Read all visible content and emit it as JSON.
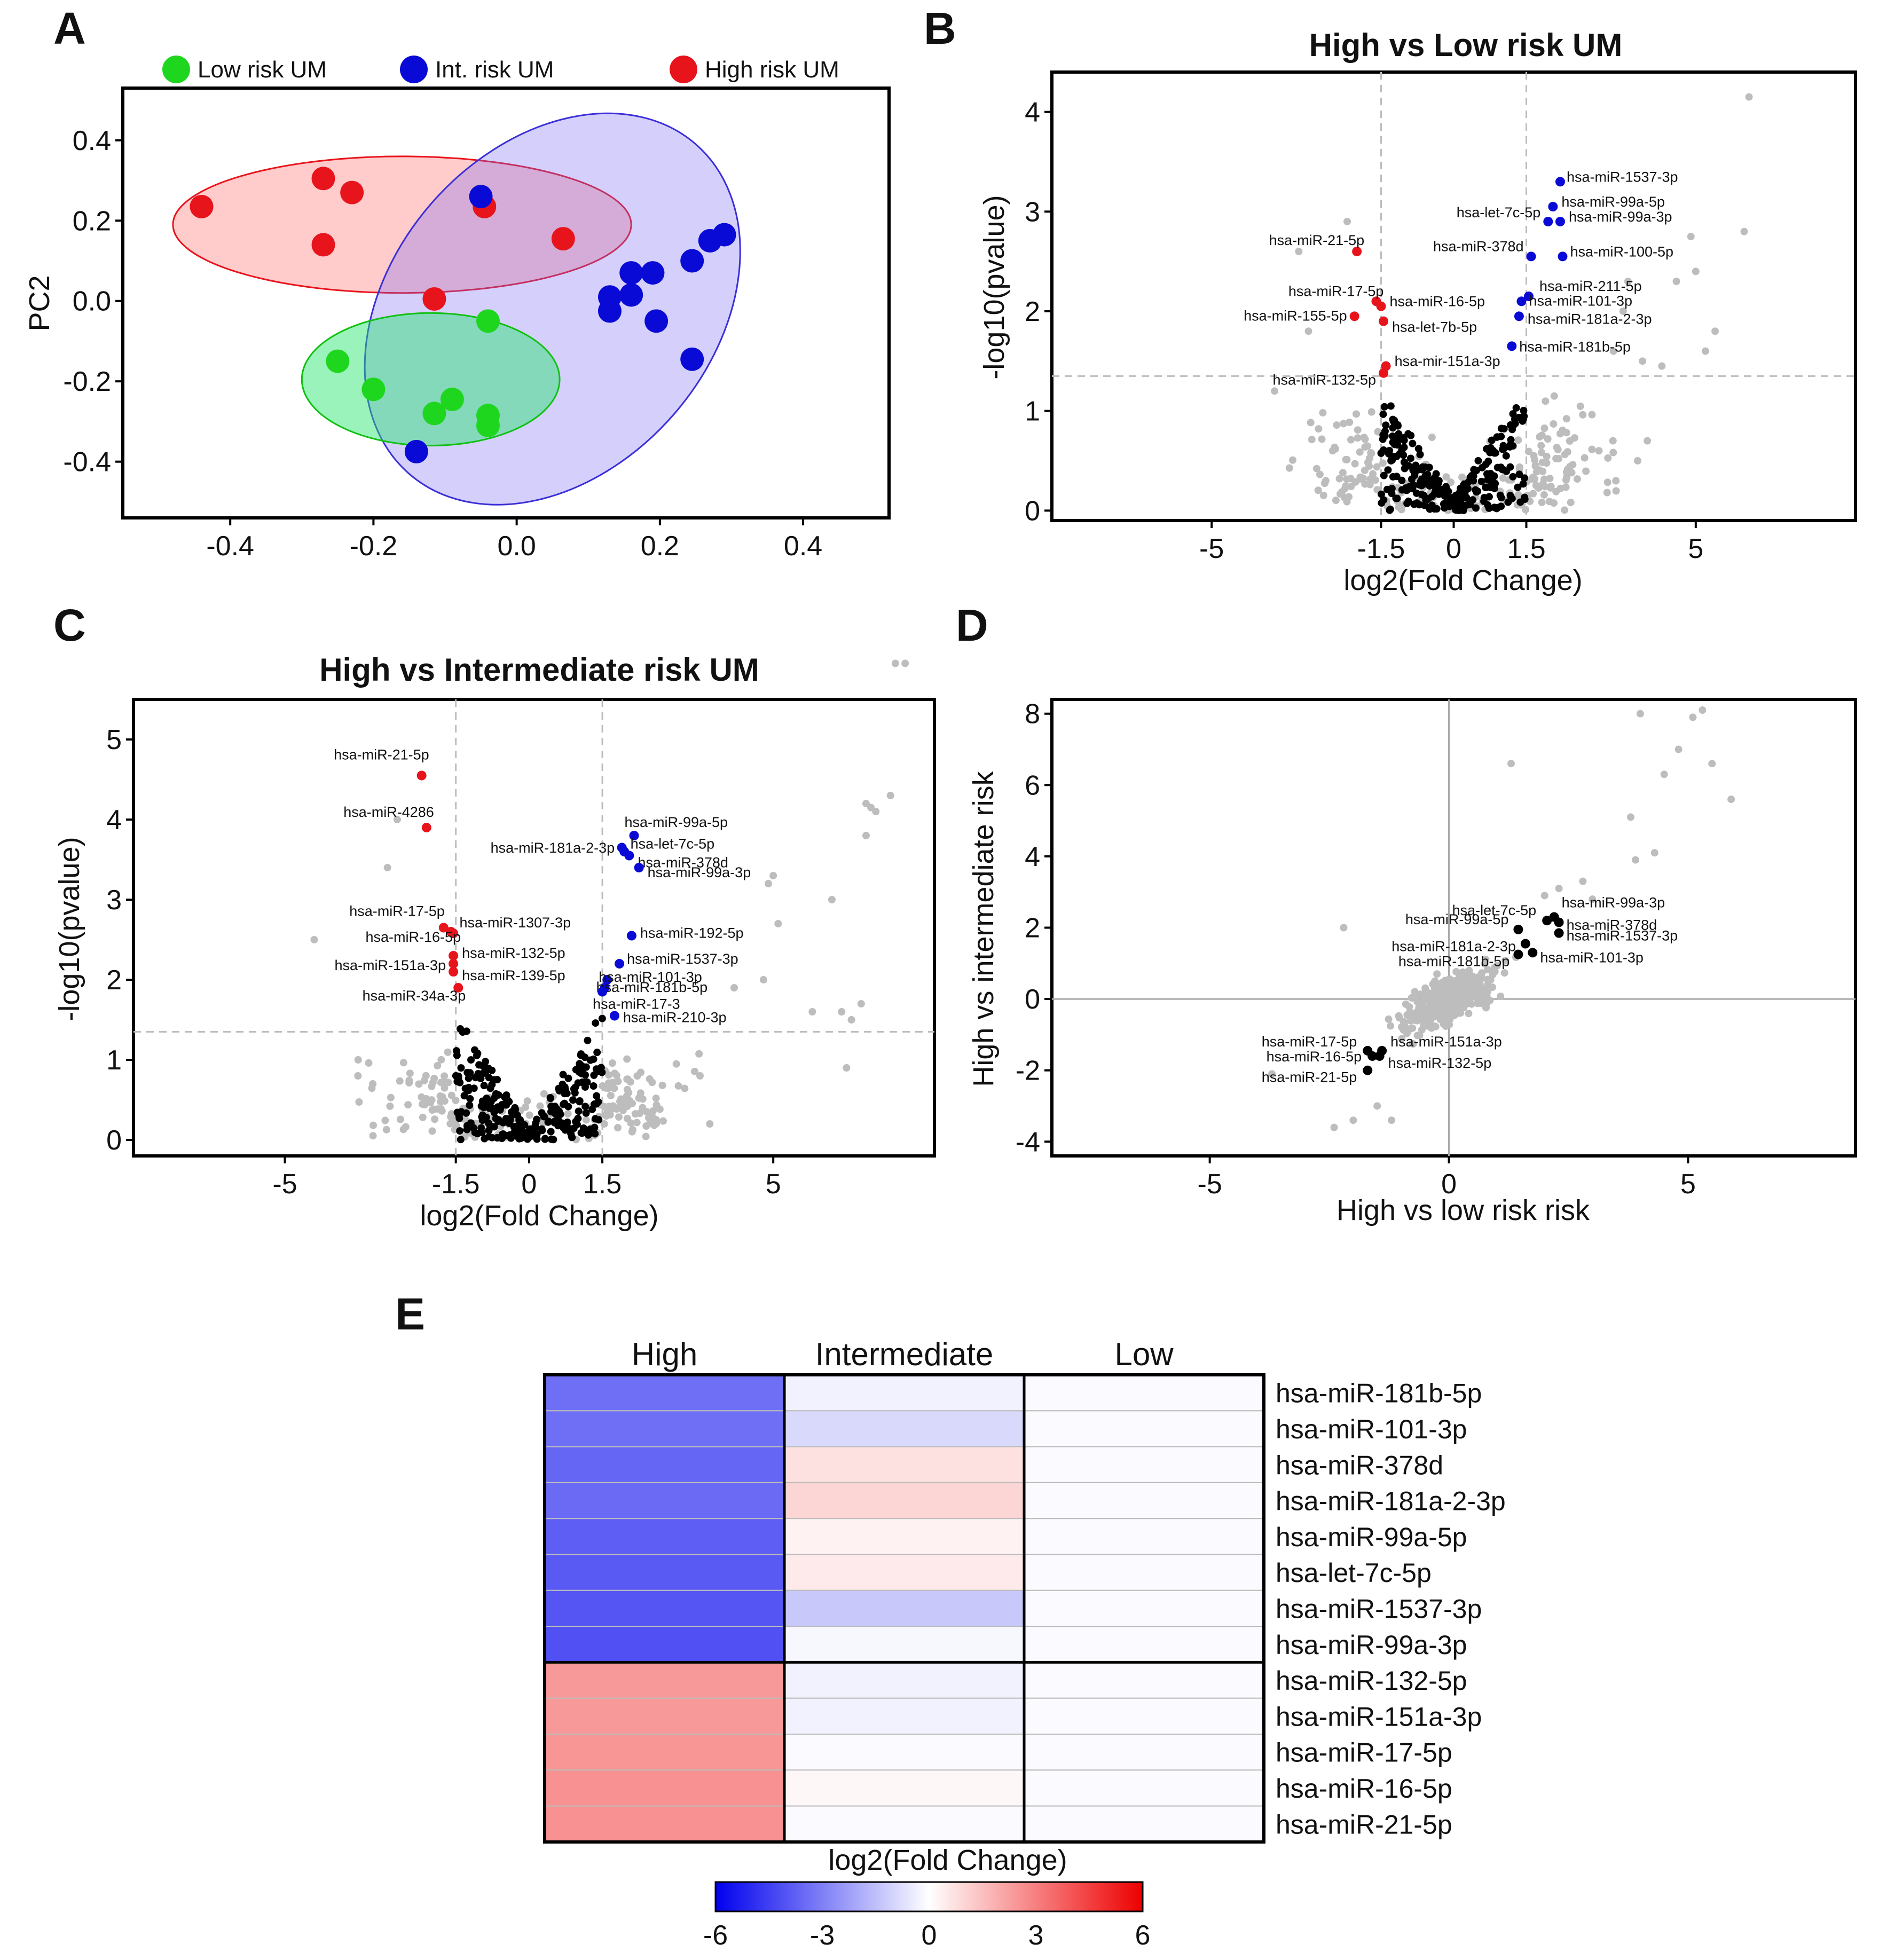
{
  "colors": {
    "red": "#e8141c",
    "blue": "#0a0ad6",
    "green": "#1fd61f",
    "gray": "#bdbdbd",
    "black": "#000000"
  },
  "chart_data": [
    {
      "panel": "A",
      "type": "scatter",
      "title": "",
      "xlabel": "",
      "ylabel": "PC2",
      "xlim": [
        -0.55,
        0.52
      ],
      "ylim": [
        -0.54,
        0.53
      ],
      "xticks": [
        "-0.4",
        "-0.2",
        "0.0",
        "0.2",
        "0.4"
      ],
      "yticks": [
        "0.4",
        "0.2",
        "0.0",
        "-0.2",
        "-0.4"
      ],
      "legend": [
        "Low risk UM",
        "Int. risk UM",
        "High risk UM"
      ],
      "series": [
        {
          "name": "High risk UM",
          "color": "#e8141c",
          "points": [
            [
              -0.44,
              0.235
            ],
            [
              -0.27,
              0.305
            ],
            [
              -0.23,
              0.27
            ],
            [
              -0.27,
              0.14
            ],
            [
              -0.045,
              0.235
            ],
            [
              0.065,
              0.155
            ],
            [
              -0.115,
              0.005
            ]
          ]
        },
        {
          "name": "Int. risk UM",
          "color": "#0a0ad6",
          "points": [
            [
              -0.05,
              0.26
            ],
            [
              0.16,
              0.07
            ],
            [
              0.19,
              0.07
            ],
            [
              0.13,
              0.01
            ],
            [
              0.16,
              0.015
            ],
            [
              0.13,
              -0.025
            ],
            [
              0.195,
              -0.05
            ],
            [
              0.245,
              0.1
            ],
            [
              0.27,
              0.15
            ],
            [
              0.29,
              0.165
            ],
            [
              0.245,
              -0.145
            ],
            [
              -0.14,
              -0.375
            ]
          ]
        },
        {
          "name": "Low risk UM",
          "color": "#1fd61f",
          "points": [
            [
              -0.04,
              -0.05
            ],
            [
              -0.25,
              -0.15
            ],
            [
              -0.2,
              -0.22
            ],
            [
              -0.09,
              -0.245
            ],
            [
              -0.115,
              -0.28
            ],
            [
              -0.04,
              -0.285
            ],
            [
              -0.04,
              -0.31
            ]
          ]
        }
      ],
      "ellipses": [
        {
          "group": "High risk UM",
          "cx": -0.16,
          "cy": 0.19,
          "rx": 0.32,
          "ry": 0.17,
          "angle_deg": 0
        },
        {
          "group": "Int. risk UM",
          "cx": 0.05,
          "cy": -0.02,
          "rx": 0.305,
          "ry": 0.4,
          "angle_deg": -49
        },
        {
          "group": "Low risk UM",
          "cx": -0.12,
          "cy": -0.195,
          "rx": 0.18,
          "ry": 0.165,
          "angle_deg": 0
        }
      ]
    },
    {
      "panel": "B",
      "type": "scatter",
      "title": "High vs Low risk UM",
      "xlabel": "log2(Fold Change)",
      "ylabel": "-log10(pvalue)",
      "xlim": [
        -8.3,
        8.3
      ],
      "ylim": [
        -0.1,
        4.4
      ],
      "xticks": [
        "-5",
        "-1.5",
        "0",
        "1.5",
        "5"
      ],
      "yticks": [
        "4",
        "3",
        "2",
        "1",
        "0"
      ],
      "thresholds": {
        "x": [
          -1.5,
          1.5
        ],
        "y": 1.35
      },
      "labeled_points": [
        {
          "label": "hsa-miR-21-5p",
          "x": -2.0,
          "y": 2.6,
          "color": "red"
        },
        {
          "label": "hsa-miR-17-5p",
          "x": -1.6,
          "y": 2.1,
          "color": "red"
        },
        {
          "label": "hsa-miR-16-5p",
          "x": -1.5,
          "y": 2.05,
          "color": "red"
        },
        {
          "label": "hsa-miR-155-5p",
          "x": -2.05,
          "y": 1.95,
          "color": "red"
        },
        {
          "label": "hsa-let-7b-5p",
          "x": -1.45,
          "y": 1.9,
          "color": "red"
        },
        {
          "label": "hsa-mir-151a-3p",
          "x": -1.4,
          "y": 1.45,
          "color": "red"
        },
        {
          "label": "hsa-miR-132-5p",
          "x": -1.45,
          "y": 1.38,
          "color": "red"
        },
        {
          "label": "hsa-miR-1537-3p",
          "x": 2.2,
          "y": 3.3,
          "color": "blue"
        },
        {
          "label": "hsa-miR-99a-5p",
          "x": 2.05,
          "y": 3.05,
          "color": "blue"
        },
        {
          "label": "hsa-let-7c-5p",
          "x": 1.95,
          "y": 2.9,
          "color": "blue"
        },
        {
          "label": "hsa-miR-99a-3p",
          "x": 2.2,
          "y": 2.9,
          "color": "blue"
        },
        {
          "label": "hsa-miR-378d",
          "x": 1.6,
          "y": 2.55,
          "color": "blue"
        },
        {
          "label": "hsa-miR-100-5p",
          "x": 2.25,
          "y": 2.55,
          "color": "blue"
        },
        {
          "label": "hsa-miR-211-5p",
          "x": 1.55,
          "y": 2.15,
          "color": "blue"
        },
        {
          "label": "hsa-miR-101-3p",
          "x": 1.4,
          "y": 2.1,
          "color": "blue"
        },
        {
          "label": "hsa-miR-181a-2-3p",
          "x": 1.35,
          "y": 1.95,
          "color": "blue"
        },
        {
          "label": "hsa-miR-181b-5p",
          "x": 1.2,
          "y": 1.65,
          "color": "blue"
        }
      ]
    },
    {
      "panel": "C",
      "type": "scatter",
      "title": "High vs Intermediate risk UM",
      "xlabel": "log2(Fold Change)",
      "ylabel": "-log10(pvalue)",
      "xlim": [
        -8.1,
        8.3
      ],
      "ylim": [
        -0.2,
        5.5
      ],
      "xticks": [
        "-5",
        "-1.5",
        "0",
        "1.5",
        "5"
      ],
      "yticks": [
        "5",
        "4",
        "3",
        "2",
        "1",
        "0"
      ],
      "thresholds": {
        "x": [
          -1.5,
          1.5
        ],
        "y": 1.35
      },
      "labeled_points": [
        {
          "label": "hsa-miR-21-5p",
          "x": -2.2,
          "y": 4.55,
          "color": "red"
        },
        {
          "label": "hsa-miR-4286",
          "x": -2.1,
          "y": 3.9,
          "color": "red"
        },
        {
          "label": "hsa-miR-17-5p",
          "x": -1.75,
          "y": 2.65,
          "color": "red"
        },
        {
          "label": "hsa-miR-1307-3p",
          "x": -1.6,
          "y": 2.6,
          "color": "red"
        },
        {
          "label": "hsa-miR-16-5p",
          "x": -1.55,
          "y": 2.58,
          "color": "red"
        },
        {
          "label": "hsa-miR-132-5p",
          "x": -1.55,
          "y": 2.3,
          "color": "red"
        },
        {
          "label": "hsa-miR-151a-3p",
          "x": -1.55,
          "y": 2.2,
          "color": "red"
        },
        {
          "label": "hsa-miR-139-5p",
          "x": -1.55,
          "y": 2.1,
          "color": "red"
        },
        {
          "label": "hsa-miR-34a-3p",
          "x": -1.45,
          "y": 1.9,
          "color": "red"
        },
        {
          "label": "hsa-miR-99a-5p",
          "x": 2.15,
          "y": 3.8,
          "color": "blue"
        },
        {
          "label": "hsa-let-7c-5p",
          "x": 1.9,
          "y": 3.65,
          "color": "blue"
        },
        {
          "label": "hsa-miR-181a-2-3p",
          "x": 1.95,
          "y": 3.6,
          "color": "blue"
        },
        {
          "label": "hsa-miR-378d",
          "x": 2.05,
          "y": 3.55,
          "color": "blue"
        },
        {
          "label": "hsa-miR-99a-3p",
          "x": 2.25,
          "y": 3.4,
          "color": "blue"
        },
        {
          "label": "hsa-miR-192-5p",
          "x": 2.1,
          "y": 2.55,
          "color": "blue"
        },
        {
          "label": "hsa-miR-1537-3p",
          "x": 1.85,
          "y": 2.2,
          "color": "blue"
        },
        {
          "label": "hsa-miR-101-3p",
          "x": 1.6,
          "y": 2.0,
          "color": "blue"
        },
        {
          "label": "hsa-miR-181b-5p",
          "x": 1.55,
          "y": 1.9,
          "color": "blue"
        },
        {
          "label": "hsa-miR-17-3",
          "x": 1.5,
          "y": 1.85,
          "color": "blue"
        },
        {
          "label": "hsa-miR-210-3p",
          "x": 1.75,
          "y": 1.55,
          "color": "blue"
        }
      ]
    },
    {
      "panel": "D",
      "type": "scatter",
      "title": "",
      "xlabel": "High vs low risk risk",
      "ylabel": "High vs intermediate risk",
      "xlim": [
        -8.3,
        8.5
      ],
      "ylim": [
        -4.4,
        8.4
      ],
      "xticks": [
        "-5",
        "0",
        "5"
      ],
      "yticks": [
        "8",
        "6",
        "4",
        "2",
        "0",
        "-2",
        "-4"
      ],
      "labeled_points": [
        {
          "label": "hsa-miR-99a-3p",
          "x": 2.2,
          "y": 2.3,
          "color": "black"
        },
        {
          "label": "hsa-let-7c-5p",
          "x": 2.05,
          "y": 2.2,
          "color": "black"
        },
        {
          "label": "hsa-miR-378d",
          "x": 2.3,
          "y": 2.15,
          "color": "black"
        },
        {
          "label": "hsa-miR-99a-5p",
          "x": 1.45,
          "y": 1.95,
          "color": "black"
        },
        {
          "label": "hsa-miR-1537-3p",
          "x": 2.3,
          "y": 1.85,
          "color": "black"
        },
        {
          "label": "hsa-miR-181a-2-3p",
          "x": 1.6,
          "y": 1.55,
          "color": "black"
        },
        {
          "label": "hsa-miR-101-3p",
          "x": 1.75,
          "y": 1.3,
          "color": "black"
        },
        {
          "label": "hsa-miR-181b-5p",
          "x": 1.45,
          "y": 1.25,
          "color": "black"
        },
        {
          "label": "hsa-miR-17-5p",
          "x": -1.7,
          "y": -1.45,
          "color": "black"
        },
        {
          "label": "hsa-miR-151a-3p",
          "x": -1.4,
          "y": -1.45,
          "color": "black"
        },
        {
          "label": "hsa-miR-16-5p",
          "x": -1.6,
          "y": -1.6,
          "color": "black"
        },
        {
          "label": "hsa-miR-132-5p",
          "x": -1.45,
          "y": -1.6,
          "color": "black"
        },
        {
          "label": "hsa-miR-21-5p",
          "x": -1.7,
          "y": -2.0,
          "color": "black"
        }
      ]
    },
    {
      "panel": "E",
      "type": "heatmap",
      "title": "",
      "legend_title": "log2(Fold Change)",
      "columns": [
        "High",
        "Intermediate",
        "Low"
      ],
      "rows": [
        "hsa-miR-181b-5p",
        "hsa-miR-101-3p",
        "hsa-miR-378d",
        "hsa-miR-181a-2-3p",
        "hsa-miR-99a-5p",
        "hsa-let-7c-5p",
        "hsa-miR-1537-3p",
        "hsa-miR-99a-3p",
        "hsa-miR-132-5p",
        "hsa-miR-151a-3p",
        "hsa-miR-17-5p",
        "hsa-miR-16-5p",
        "hsa-miR-21-5p"
      ],
      "values": [
        [
          -3.4,
          -0.3,
          -0.1
        ],
        [
          -3.4,
          -0.9,
          -0.1
        ],
        [
          -3.6,
          0.7,
          -0.1
        ],
        [
          -3.5,
          1.0,
          -0.1
        ],
        [
          -3.8,
          0.3,
          -0.1
        ],
        [
          -3.9,
          0.5,
          -0.1
        ],
        [
          -4.0,
          -1.3,
          -0.1
        ],
        [
          -4.1,
          -0.2,
          -0.1
        ],
        [
          2.4,
          -0.3,
          -0.1
        ],
        [
          2.4,
          -0.3,
          -0.1
        ],
        [
          2.5,
          -0.1,
          -0.1
        ],
        [
          2.6,
          0.2,
          -0.1
        ],
        [
          2.6,
          -0.1,
          -0.1
        ]
      ],
      "colorbar": {
        "min": -6,
        "max": 6,
        "ticks": [
          "-6",
          "-3",
          "0",
          "3",
          "6"
        ]
      }
    }
  ],
  "panel_letters": [
    "A",
    "B",
    "C",
    "D",
    "E"
  ]
}
